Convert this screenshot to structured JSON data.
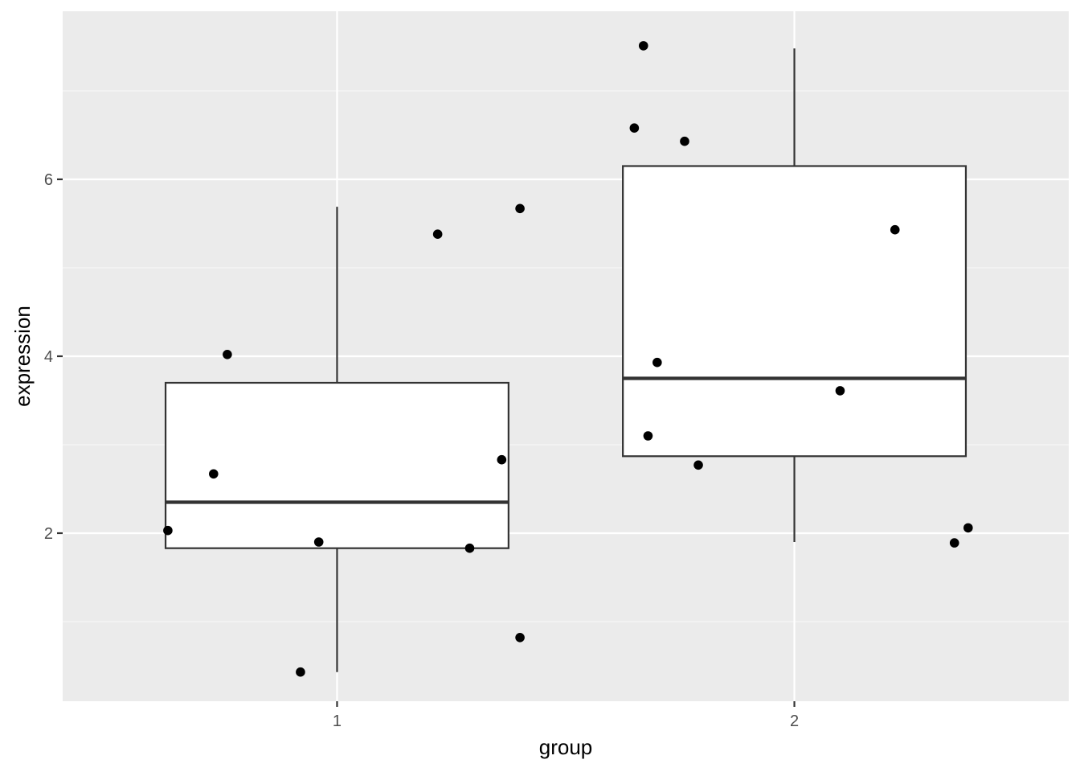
{
  "chart_data": {
    "type": "boxplot",
    "title": "",
    "xlabel": "group",
    "ylabel": "expression",
    "categories": [
      "1",
      "2"
    ],
    "ylim": [
      0.1,
      7.9
    ],
    "yticks": [
      2,
      4,
      6
    ],
    "grid": true,
    "legend": "none",
    "colors": {
      "panel_background": "#ebebeb",
      "grid_major": "#ffffff",
      "grid_minor": "#f5f5f5",
      "box_fill": "#ffffff",
      "box_stroke": "#333333",
      "points": "#000000",
      "tick_text": "#4d4d4d"
    },
    "boxes": [
      {
        "category": "1",
        "lower_whisker": 0.43,
        "q1": 1.83,
        "median": 2.35,
        "q3": 3.7,
        "upper_whisker": 5.69
      },
      {
        "category": "2",
        "lower_whisker": 1.9,
        "q1": 2.87,
        "median": 3.75,
        "q3": 6.15,
        "upper_whisker": 7.48
      }
    ],
    "points": [
      {
        "group": "1",
        "x": 0.63,
        "y": 2.03
      },
      {
        "group": "1",
        "x": 0.73,
        "y": 2.67
      },
      {
        "group": "1",
        "x": 0.76,
        "y": 4.02
      },
      {
        "group": "1",
        "x": 0.92,
        "y": 0.43
      },
      {
        "group": "1",
        "x": 0.96,
        "y": 1.9
      },
      {
        "group": "1",
        "x": 1.22,
        "y": 5.38
      },
      {
        "group": "1",
        "x": 1.29,
        "y": 1.83
      },
      {
        "group": "1",
        "x": 1.36,
        "y": 2.83
      },
      {
        "group": "1",
        "x": 1.4,
        "y": 0.82
      },
      {
        "group": "1",
        "x": 1.4,
        "y": 5.67
      },
      {
        "group": "2",
        "x": 1.65,
        "y": 6.58
      },
      {
        "group": "2",
        "x": 1.67,
        "y": 7.51
      },
      {
        "group": "2",
        "x": 1.68,
        "y": 3.1
      },
      {
        "group": "2",
        "x": 1.7,
        "y": 3.93
      },
      {
        "group": "2",
        "x": 1.76,
        "y": 6.43
      },
      {
        "group": "2",
        "x": 1.79,
        "y": 2.77
      },
      {
        "group": "2",
        "x": 2.1,
        "y": 3.61
      },
      {
        "group": "2",
        "x": 2.22,
        "y": 5.43
      },
      {
        "group": "2",
        "x": 2.35,
        "y": 1.89
      },
      {
        "group": "2",
        "x": 2.38,
        "y": 2.06
      }
    ]
  }
}
